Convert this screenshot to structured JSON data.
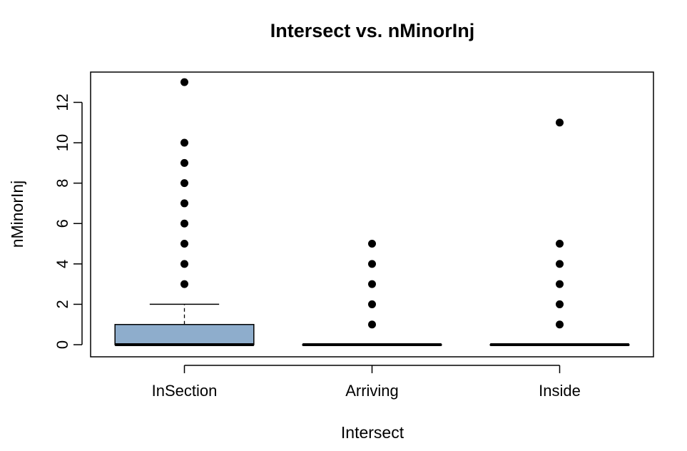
{
  "chart_data": {
    "type": "boxplot",
    "title": "Intersect  vs. nMinorInj",
    "xlabel": "Intersect",
    "ylabel": "nMinorInj",
    "ylim": [
      -0.6,
      13.5
    ],
    "yticks": [
      0,
      2,
      4,
      6,
      8,
      10,
      12
    ],
    "grid": false,
    "box_fill": "#8eadcc",
    "categories": [
      "InSection",
      "Arriving",
      "Inside"
    ],
    "boxes": [
      {
        "category": "InSection",
        "min": 0,
        "q1": 0,
        "median": 0,
        "q3": 1,
        "max": 2,
        "outliers": [
          3,
          4,
          5,
          6,
          7,
          8,
          9,
          10,
          13
        ]
      },
      {
        "category": "Arriving",
        "min": 0,
        "q1": 0,
        "median": 0,
        "q3": 0,
        "max": 0,
        "outliers": [
          1,
          2,
          3,
          4,
          5
        ]
      },
      {
        "category": "Inside",
        "min": 0,
        "q1": 0,
        "median": 0,
        "q3": 0,
        "max": 0,
        "outliers": [
          1,
          2,
          3,
          4,
          5,
          11
        ]
      }
    ]
  }
}
